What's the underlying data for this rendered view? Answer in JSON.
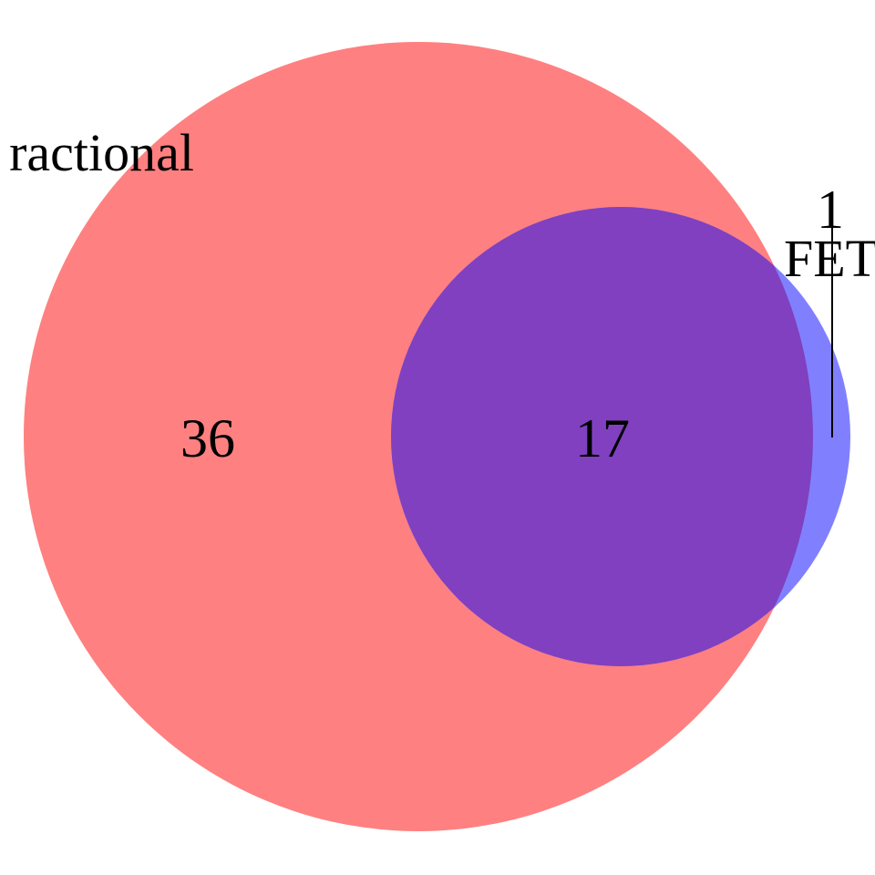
{
  "venn": {
    "sets": [
      {
        "id": "A",
        "label": "ractional",
        "color": "#ff8080",
        "only_count": "36"
      },
      {
        "id": "B",
        "label": "FET",
        "color": "#8080ff",
        "only_count": "1"
      }
    ],
    "intersection": {
      "sets": [
        "A",
        "B"
      ],
      "count": "17",
      "color": "#8040c0"
    }
  }
}
